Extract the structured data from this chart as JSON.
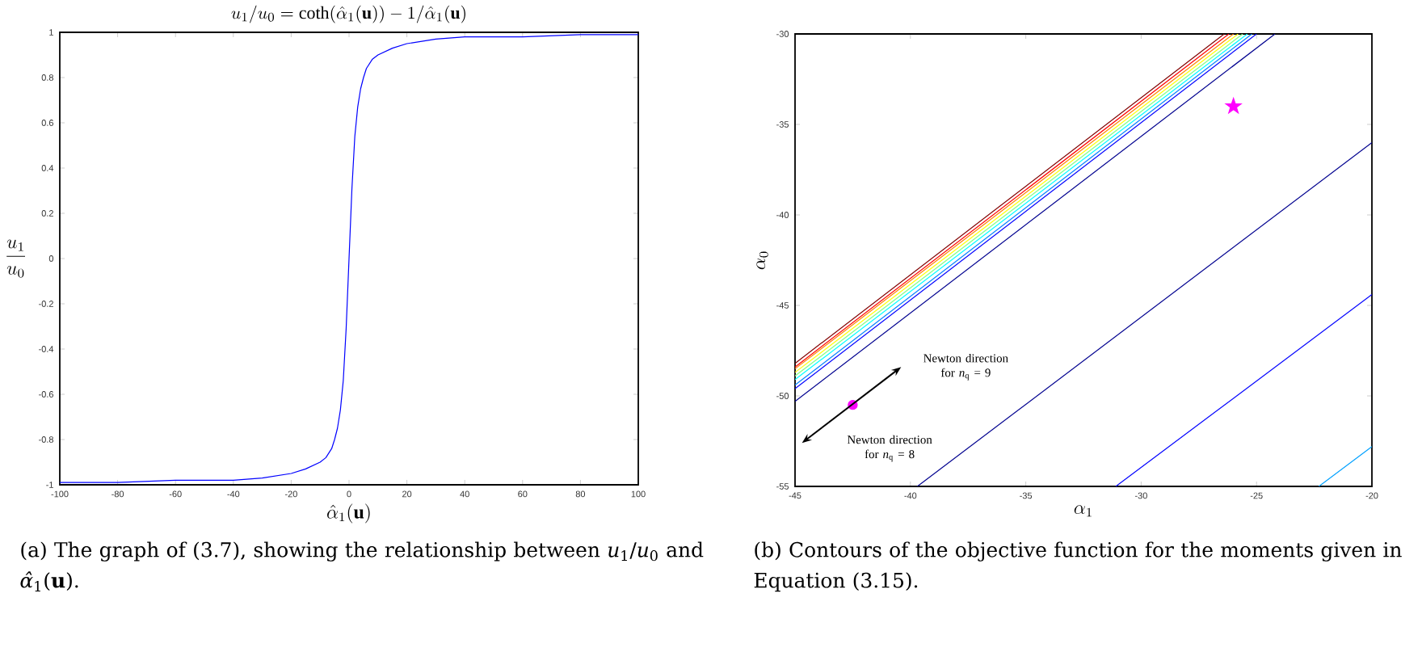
{
  "chart_data": [
    {
      "type": "line",
      "title": "u_1/u_0 = \\coth(\\hat{\\alpha}_1(\\mathbf{u})) - 1/\\hat{\\alpha}_1(\\mathbf{u})",
      "xlabel": "\\hat{\\alpha}_1(\\mathbf{u})",
      "ylabel": "\\frac{u_1}{u_0}",
      "x": [
        -100,
        -80,
        -60,
        -40,
        -30,
        -20,
        -15,
        -10,
        -8,
        -6,
        -5,
        -4,
        -3,
        -2,
        -1,
        0,
        1,
        2,
        3,
        4,
        5,
        6,
        8,
        10,
        15,
        20,
        30,
        40,
        60,
        80,
        100
      ],
      "values": [
        -0.99,
        -0.99,
        -0.98,
        -0.98,
        -0.97,
        -0.95,
        -0.93,
        -0.9,
        -0.88,
        -0.84,
        -0.8,
        -0.75,
        -0.67,
        -0.54,
        -0.31,
        0,
        0.31,
        0.54,
        0.67,
        0.75,
        0.8,
        0.84,
        0.88,
        0.9,
        0.93,
        0.95,
        0.97,
        0.98,
        0.98,
        0.99,
        0.99
      ],
      "color": "#0000ff",
      "xlim": [
        -100,
        100
      ],
      "ylim": [
        -1,
        1
      ],
      "xticks": [
        -100,
        -80,
        -60,
        -40,
        -20,
        0,
        20,
        40,
        60,
        80,
        100
      ],
      "yticks": [
        -1,
        -0.8,
        -0.6,
        -0.4,
        -0.2,
        0,
        0.2,
        0.4,
        0.6,
        0.8,
        1
      ],
      "annotations": [
        "(a) The graph of (3.7), showing the relationship between *u*$_{1}$/*u*$_{0}$ and *α̂*$_{1}$(**u**)."
      ]
    },
    {
      "type": "line",
      "xlabel": "\\alpha_1",
      "ylabel": "\\alpha_0",
      "series": [
        {
          "color": "#800000",
          "x": [
            -45,
            -26.4
          ],
          "values": [
            -48.2,
            -30
          ]
        },
        {
          "color": "#ff0000",
          "x": [
            -45,
            -26.2
          ],
          "values": [
            -48.4,
            -30
          ]
        },
        {
          "color": "#ff8000",
          "x": [
            -45,
            -26.0
          ],
          "values": [
            -48.5,
            -30
          ]
        },
        {
          "color": "#ffff00",
          "x": [
            -45,
            -25.8
          ],
          "values": [
            -48.7,
            -30
          ]
        },
        {
          "color": "#80ff80",
          "x": [
            -45,
            -25.6
          ],
          "values": [
            -48.9,
            -30
          ]
        },
        {
          "color": "#00ffff",
          "x": [
            -45,
            -25.4
          ],
          "values": [
            -49.1,
            -30
          ]
        },
        {
          "color": "#0080ff",
          "x": [
            -45,
            -25.2
          ],
          "values": [
            -49.4,
            -30
          ]
        },
        {
          "color": "#0000ff",
          "x": [
            -45,
            -25.0
          ],
          "values": [
            -49.6,
            -30
          ]
        },
        {
          "color": "#00008f",
          "x": [
            -45,
            -24.2
          ],
          "values": [
            -50.3,
            -30
          ]
        },
        {
          "color": "#00008f",
          "x": [
            -39.7,
            -20
          ],
          "values": [
            -55,
            -36.0
          ]
        },
        {
          "color": "#0000ff",
          "x": [
            -31.1,
            -20
          ],
          "values": [
            -55,
            -44.4
          ]
        },
        {
          "color": "#00a0ff",
          "x": [
            -22.3,
            -20
          ],
          "values": [
            -55,
            -52.8
          ]
        },
        {
          "type": "scatter",
          "marker": "star",
          "color": "#ff00ff",
          "x": [
            -26.0
          ],
          "values": [
            -34.0
          ]
        },
        {
          "type": "scatter",
          "marker": "circle",
          "color": "#ff00ff",
          "x": [
            -42.5
          ],
          "values": [
            -50.5
          ]
        }
      ],
      "xlim": [
        -45,
        -20
      ],
      "ylim": [
        -55,
        -30
      ],
      "xticks": [
        -45,
        -40,
        -35,
        -30,
        -25,
        -20
      ],
      "yticks": [
        -55,
        -50,
        -45,
        -40,
        -35,
        -30
      ],
      "annotations": [
        "Newton direction for *n*$_{q}$ = 9",
        "Newton direction for *n*$_{q}$ = 8",
        "(b) Contours of the objective function for the moments given in Equation (3.15)."
      ]
    }
  ]
}
